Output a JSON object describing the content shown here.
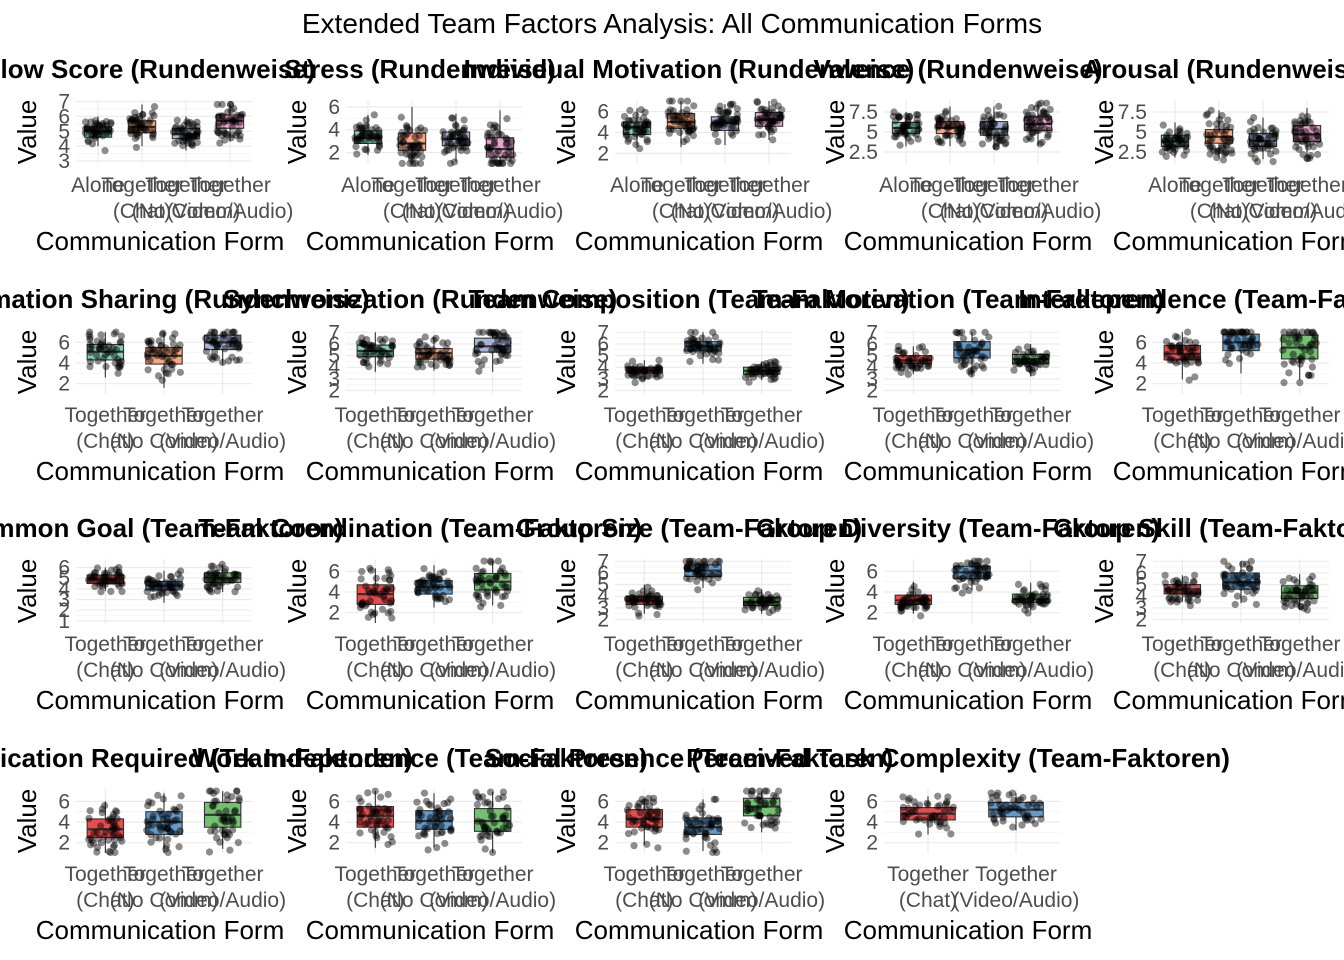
{
  "figure_title": "Extended Team Factors Analysis: All Communication Forms",
  "y_axis_label": "Value",
  "x_axis_label": "Communication Form",
  "colors": {
    "Alone": "#66C2A5",
    "Together (Chat)": "#FC8D62",
    "Together (No Comm)": "#8DA0CB",
    "Together (Video/Audio)": "#E78AC3",
    "set1_red": "#E41A1C",
    "set1_blue": "#377EB8",
    "set1_green": "#4DAF4A"
  },
  "chart_data": [
    {
      "type": "box",
      "title": "Flow Score (Rundenweise)",
      "categories": [
        "Alone",
        "Together\n(Chat)",
        "Together\n(No Comm)",
        "Together\n(Video/Audio)"
      ],
      "palette": [
        "#66C2A5",
        "#FC8D62",
        "#8DA0CB",
        "#E78AC3"
      ],
      "ylim": [
        2.8,
        7.1
      ],
      "yticks": [
        3,
        4,
        5,
        6,
        7
      ],
      "boxes": [
        {
          "q1": 4.6,
          "median": 5.0,
          "q3": 5.3,
          "whisker_low": 4.0,
          "whisker_high": 6.0
        },
        {
          "q1": 4.9,
          "median": 5.3,
          "q3": 5.7,
          "whisker_low": 4.0,
          "whisker_high": 6.8
        },
        {
          "q1": 4.5,
          "median": 4.8,
          "q3": 5.2,
          "whisker_low": 3.7,
          "whisker_high": 6.0
        },
        {
          "q1": 5.2,
          "median": 5.7,
          "q3": 6.1,
          "whisker_low": 4.3,
          "whisker_high": 6.8
        }
      ]
    },
    {
      "type": "box",
      "title": "Stress (Rundenweise)",
      "categories": [
        "Alone",
        "Together\n(Chat)",
        "Together\n(No Comm)",
        "Together\n(Video/Audio)"
      ],
      "palette": [
        "#66C2A5",
        "#FC8D62",
        "#8DA0CB",
        "#E78AC3"
      ],
      "ylim": [
        1.0,
        6.6
      ],
      "yticks": [
        2,
        4,
        6
      ],
      "boxes": [
        {
          "q1": 2.8,
          "median": 3.3,
          "q3": 3.9,
          "whisker_low": 1.8,
          "whisker_high": 5.3
        },
        {
          "q1": 2.2,
          "median": 2.8,
          "q3": 3.7,
          "whisker_low": 1.0,
          "whisker_high": 6.0
        },
        {
          "q1": 2.6,
          "median": 3.2,
          "q3": 3.8,
          "whisker_low": 1.2,
          "whisker_high": 5.4
        },
        {
          "q1": 1.6,
          "median": 2.3,
          "q3": 3.3,
          "whisker_low": 1.0,
          "whisker_high": 5.7
        }
      ]
    },
    {
      "type": "box",
      "title": "Individual Motivation (Rundenweise)",
      "categories": [
        "Alone",
        "Together\n(Chat)",
        "Together\n(No Comm)",
        "Together\n(Video/Audio)"
      ],
      "palette": [
        "#66C2A5",
        "#FC8D62",
        "#8DA0CB",
        "#E78AC3"
      ],
      "ylim": [
        1.0,
        7.1
      ],
      "yticks": [
        2,
        4,
        6
      ],
      "boxes": [
        {
          "q1": 3.8,
          "median": 4.5,
          "q3": 5.0,
          "whisker_low": 2.7,
          "whisker_high": 6.3
        },
        {
          "q1": 4.4,
          "median": 5.0,
          "q3": 5.8,
          "whisker_low": 2.6,
          "whisker_high": 7.0
        },
        {
          "q1": 4.2,
          "median": 4.9,
          "q3": 5.5,
          "whisker_low": 2.8,
          "whisker_high": 6.7
        },
        {
          "q1": 4.6,
          "median": 5.2,
          "q3": 5.9,
          "whisker_low": 3.3,
          "whisker_high": 7.0
        }
      ]
    },
    {
      "type": "box",
      "title": "Valence (Rundenweise)",
      "categories": [
        "Alone",
        "Together\n(Chat)",
        "Together\n(No Comm)",
        "Together\n(Video/Audio)"
      ],
      "palette": [
        "#66C2A5",
        "#FC8D62",
        "#8DA0CB",
        "#E78AC3"
      ],
      "ylim": [
        1.0,
        9.0
      ],
      "yticks": [
        2.5,
        5.0,
        7.5
      ],
      "boxes": [
        {
          "q1": 4.8,
          "median": 5.5,
          "q3": 6.2,
          "whisker_low": 3.2,
          "whisker_high": 7.5
        },
        {
          "q1": 4.8,
          "median": 5.5,
          "q3": 6.3,
          "whisker_low": 3.2,
          "whisker_high": 8.2
        },
        {
          "q1": 4.6,
          "median": 5.4,
          "q3": 6.3,
          "whisker_low": 2.8,
          "whisker_high": 8.2
        },
        {
          "q1": 5.2,
          "median": 6.0,
          "q3": 6.9,
          "whisker_low": 3.3,
          "whisker_high": 8.6
        }
      ]
    },
    {
      "type": "box",
      "title": "Arousal (Rundenweise)",
      "categories": [
        "Alone",
        "Together\n(Chat)",
        "Together\n(No Comm)",
        "Together\n(Video/Audio)"
      ],
      "palette": [
        "#66C2A5",
        "#FC8D62",
        "#8DA0CB",
        "#E78AC3"
      ],
      "ylim": [
        1.0,
        9.0
      ],
      "yticks": [
        2.5,
        5.0,
        7.5
      ],
      "boxes": [
        {
          "q1": 3.2,
          "median": 3.8,
          "q3": 4.6,
          "whisker_low": 1.8,
          "whisker_high": 6.2
        },
        {
          "q1": 3.6,
          "median": 4.4,
          "q3": 5.3,
          "whisker_low": 1.8,
          "whisker_high": 7.7
        },
        {
          "q1": 3.2,
          "median": 3.9,
          "q3": 4.8,
          "whisker_low": 1.6,
          "whisker_high": 6.8
        },
        {
          "q1": 3.8,
          "median": 4.7,
          "q3": 5.8,
          "whisker_low": 2.0,
          "whisker_high": 8.0
        }
      ]
    },
    {
      "type": "box",
      "title": "Information Sharing (Rundenweise)",
      "categories": [
        "Together\n(Chat)",
        "Together\n(No Comm)",
        "Together\n(Video/Audio)"
      ],
      "palette": [
        "#66C2A5",
        "#FC8D62",
        "#8DA0CB"
      ],
      "ylim": [
        1.0,
        7.2
      ],
      "yticks": [
        2,
        4,
        6
      ],
      "boxes": [
        {
          "q1": 4.3,
          "median": 5.1,
          "q3": 5.8,
          "whisker_low": 2.6,
          "whisker_high": 7.0
        },
        {
          "q1": 3.9,
          "median": 4.7,
          "q3": 5.5,
          "whisker_low": 1.6,
          "whisker_high": 7.0
        },
        {
          "q1": 5.3,
          "median": 6.0,
          "q3": 6.7,
          "whisker_low": 3.8,
          "whisker_high": 7.0
        }
      ]
    },
    {
      "type": "box",
      "title": "Synchronization (Rundenweise)",
      "categories": [
        "Together\n(Chat)",
        "Together\n(No Comm)",
        "Together\n(Video/Audio)"
      ],
      "palette": [
        "#66C2A5",
        "#FC8D62",
        "#8DA0CB"
      ],
      "ylim": [
        1.7,
        7.2
      ],
      "yticks": [
        2,
        3,
        4,
        5,
        6,
        7
      ],
      "boxes": [
        {
          "q1": 4.9,
          "median": 5.4,
          "q3": 5.9,
          "whisker_low": 3.6,
          "whisker_high": 7.0
        },
        {
          "q1": 4.7,
          "median": 5.2,
          "q3": 5.6,
          "whisker_low": 3.7,
          "whisker_high": 6.6
        },
        {
          "q1": 5.3,
          "median": 5.8,
          "q3": 6.5,
          "whisker_low": 3.6,
          "whisker_high": 7.0
        }
      ]
    },
    {
      "type": "box",
      "title": "Team Composition (Team-Faktoren)",
      "categories": [
        "Together\n(Chat)",
        "Together\n(No Comm)",
        "Together\n(Video/Audio)"
      ],
      "palette": [
        "#E41A1C",
        "#377EB8",
        "#4DAF4A"
      ],
      "ylim": [
        1.7,
        7.2
      ],
      "yticks": [
        2,
        3,
        4,
        5,
        6,
        7
      ],
      "boxes": [
        {
          "q1": 3.5,
          "median": 3.7,
          "q3": 4.0,
          "whisker_low": 2.9,
          "whisker_high": 4.6
        },
        {
          "q1": 5.4,
          "median": 5.8,
          "q3": 6.2,
          "whisker_low": 4.3,
          "whisker_high": 7.0
        },
        {
          "q1": 3.4,
          "median": 3.7,
          "q3": 4.0,
          "whisker_low": 2.9,
          "whisker_high": 4.5
        }
      ]
    },
    {
      "type": "box",
      "title": "Team Motivation (Team-Faktoren)",
      "categories": [
        "Together\n(Chat)",
        "Together\n(No Comm)",
        "Together\n(Video/Audio)"
      ],
      "palette": [
        "#E41A1C",
        "#377EB8",
        "#4DAF4A"
      ],
      "ylim": [
        1.7,
        7.2
      ],
      "yticks": [
        2,
        3,
        4,
        5,
        6,
        7
      ],
      "boxes": [
        {
          "q1": 4.3,
          "median": 4.6,
          "q3": 5.0,
          "whisker_low": 3.4,
          "whisker_high": 5.8
        },
        {
          "q1": 4.8,
          "median": 5.5,
          "q3": 6.2,
          "whisker_low": 3.2,
          "whisker_high": 7.0
        },
        {
          "q1": 4.3,
          "median": 4.7,
          "q3": 5.1,
          "whisker_low": 3.2,
          "whisker_high": 6.0
        }
      ]
    },
    {
      "type": "box",
      "title": "Interdependence (Team-Faktoren)",
      "categories": [
        "Together\n(Chat)",
        "Together\n(No Comm)",
        "Together\n(Video/Audio)"
      ],
      "palette": [
        "#E41A1C",
        "#377EB8",
        "#4DAF4A"
      ],
      "ylim": [
        1.0,
        7.2
      ],
      "yticks": [
        2,
        4,
        6
      ],
      "boxes": [
        {
          "q1": 4.3,
          "median": 4.9,
          "q3": 5.7,
          "whisker_low": 2.4,
          "whisker_high": 7.0
        },
        {
          "q1": 5.2,
          "median": 6.0,
          "q3": 6.8,
          "whisker_low": 3.0,
          "whisker_high": 7.0
        },
        {
          "q1": 4.4,
          "median": 5.5,
          "q3": 6.7,
          "whisker_low": 2.4,
          "whisker_high": 7.0
        }
      ]
    },
    {
      "type": "box",
      "title": "Common Goal (Team-Faktoren)",
      "categories": [
        "Together\n(Chat)",
        "Together\n(No Comm)",
        "Together\n(Video/Audio)"
      ],
      "palette": [
        "#E41A1C",
        "#377EB8",
        "#4DAF4A"
      ],
      "ylim": [
        0.8,
        6.8
      ],
      "yticks": [
        1,
        2,
        3,
        4,
        5,
        6
      ],
      "boxes": [
        {
          "q1": 4.5,
          "median": 4.9,
          "q3": 5.3,
          "whisker_low": 3.8,
          "whisker_high": 6.0
        },
        {
          "q1": 3.9,
          "median": 4.3,
          "q3": 4.7,
          "whisker_low": 2.7,
          "whisker_high": 5.7
        },
        {
          "q1": 4.6,
          "median": 5.0,
          "q3": 5.5,
          "whisker_low": 3.7,
          "whisker_high": 6.3
        }
      ]
    },
    {
      "type": "box",
      "title": "Team Coordination (Team-Faktoren)",
      "categories": [
        "Together\n(Chat)",
        "Together\n(No Comm)",
        "Together\n(Video/Audio)"
      ],
      "palette": [
        "#E41A1C",
        "#377EB8",
        "#4DAF4A"
      ],
      "ylim": [
        1.0,
        7.2
      ],
      "yticks": [
        2,
        4,
        6
      ],
      "boxes": [
        {
          "q1": 2.8,
          "median": 3.8,
          "q3": 4.7,
          "whisker_low": 1.0,
          "whisker_high": 6.3
        },
        {
          "q1": 3.8,
          "median": 4.5,
          "q3": 5.1,
          "whisker_low": 2.5,
          "whisker_high": 6.6
        },
        {
          "q1": 4.2,
          "median": 5.0,
          "q3": 5.8,
          "whisker_low": 2.7,
          "whisker_high": 7.0
        }
      ]
    },
    {
      "type": "box",
      "title": "Group Size (Team-Faktoren)",
      "categories": [
        "Together\n(Chat)",
        "Together\n(No Comm)",
        "Together\n(Video/Audio)"
      ],
      "palette": [
        "#E41A1C",
        "#377EB8",
        "#4DAF4A"
      ],
      "ylim": [
        1.7,
        7.2
      ],
      "yticks": [
        2,
        3,
        4,
        5,
        6,
        7
      ],
      "boxes": [
        {
          "q1": 3.3,
          "median": 3.6,
          "q3": 4.0,
          "whisker_low": 2.5,
          "whisker_high": 5.0
        },
        {
          "q1": 5.7,
          "median": 6.2,
          "q3": 6.7,
          "whisker_low": 4.7,
          "whisker_high": 7.0
        },
        {
          "q1": 3.2,
          "median": 3.5,
          "q3": 3.9,
          "whisker_low": 2.5,
          "whisker_high": 4.6
        }
      ]
    },
    {
      "type": "box",
      "title": "Group Diversity (Team-Faktoren)",
      "categories": [
        "Together\n(Chat)",
        "Together\n(No Comm)",
        "Together\n(Video/Audio)"
      ],
      "palette": [
        "#E41A1C",
        "#377EB8",
        "#4DAF4A"
      ],
      "ylim": [
        1.0,
        7.2
      ],
      "yticks": [
        2,
        4,
        6
      ],
      "boxes": [
        {
          "q1": 2.8,
          "median": 3.2,
          "q3": 3.7,
          "whisker_low": 1.9,
          "whisker_high": 5.0
        },
        {
          "q1": 5.3,
          "median": 5.9,
          "q3": 6.5,
          "whisker_low": 4.2,
          "whisker_high": 7.0
        },
        {
          "q1": 3.0,
          "median": 3.3,
          "q3": 3.8,
          "whisker_low": 2.2,
          "whisker_high": 4.9
        }
      ]
    },
    {
      "type": "box",
      "title": "Group Skill (Team-Faktoren)",
      "categories": [
        "Together\n(Chat)",
        "Together\n(No Comm)",
        "Together\n(Video/Audio)"
      ],
      "palette": [
        "#E41A1C",
        "#377EB8",
        "#4DAF4A"
      ],
      "ylim": [
        1.7,
        7.2
      ],
      "yticks": [
        2,
        3,
        4,
        5,
        6,
        7
      ],
      "boxes": [
        {
          "q1": 4.2,
          "median": 4.6,
          "q3": 5.0,
          "whisker_low": 3.5,
          "whisker_high": 5.8
        },
        {
          "q1": 4.6,
          "median": 5.2,
          "q3": 6.0,
          "whisker_low": 3.4,
          "whisker_high": 7.0
        },
        {
          "q1": 3.8,
          "median": 4.3,
          "q3": 4.9,
          "whisker_low": 2.8,
          "whisker_high": 5.9
        }
      ]
    },
    {
      "type": "box",
      "title": "Communication Required (Team-Faktoren)",
      "categories": [
        "Together\n(Chat)",
        "Together\n(No Comm)",
        "Together\n(Video/Audio)"
      ],
      "palette": [
        "#E41A1C",
        "#377EB8",
        "#4DAF4A"
      ],
      "ylim": [
        1.0,
        7.2
      ],
      "yticks": [
        2,
        4,
        6
      ],
      "boxes": [
        {
          "q1": 2.5,
          "median": 3.3,
          "q3": 4.3,
          "whisker_low": 1.0,
          "whisker_high": 6.0
        },
        {
          "q1": 2.8,
          "median": 4.0,
          "q3": 5.0,
          "whisker_low": 1.0,
          "whisker_high": 6.8
        },
        {
          "q1": 3.5,
          "median": 4.7,
          "q3": 5.9,
          "whisker_low": 1.4,
          "whisker_high": 7.0
        }
      ]
    },
    {
      "type": "box",
      "title": "Work Independence (Team-Faktoren)",
      "categories": [
        "Together\n(Chat)",
        "Together\n(No Comm)",
        "Together\n(Video/Audio)"
      ],
      "palette": [
        "#E41A1C",
        "#377EB8",
        "#4DAF4A"
      ],
      "ylim": [
        1.0,
        7.2
      ],
      "yticks": [
        2,
        4,
        6
      ],
      "boxes": [
        {
          "q1": 3.5,
          "median": 4.6,
          "q3": 5.5,
          "whisker_low": 1.5,
          "whisker_high": 7.0
        },
        {
          "q1": 3.3,
          "median": 4.1,
          "q3": 5.1,
          "whisker_low": 1.6,
          "whisker_high": 6.8
        },
        {
          "q1": 3.1,
          "median": 4.1,
          "q3": 5.3,
          "whisker_low": 1.0,
          "whisker_high": 6.9
        }
      ]
    },
    {
      "type": "box",
      "title": "Social Presence (Team-Faktoren)",
      "categories": [
        "Together\n(Chat)",
        "Together\n(No Comm)",
        "Together\n(Video/Audio)"
      ],
      "palette": [
        "#E41A1C",
        "#377EB8",
        "#4DAF4A"
      ],
      "ylim": [
        1.0,
        7.2
      ],
      "yticks": [
        2,
        4,
        6
      ],
      "boxes": [
        {
          "q1": 3.5,
          "median": 4.3,
          "q3": 5.2,
          "whisker_low": 1.8,
          "whisker_high": 6.3
        },
        {
          "q1": 2.8,
          "median": 3.5,
          "q3": 4.4,
          "whisker_low": 1.2,
          "whisker_high": 6.2
        },
        {
          "q1": 4.6,
          "median": 5.5,
          "q3": 6.3,
          "whisker_low": 3.0,
          "whisker_high": 7.0
        }
      ]
    },
    {
      "type": "box",
      "title": "Perceived Task Complexity (Team-Faktoren)",
      "categories": [
        "Together\n(Chat)",
        "Together\n(Video/Audio)"
      ],
      "palette": [
        "#E41A1C",
        "#377EB8"
      ],
      "ylim": [
        1.0,
        7.2
      ],
      "yticks": [
        2,
        4,
        6
      ],
      "boxes": [
        {
          "q1": 4.2,
          "median": 4.8,
          "q3": 5.4,
          "whisker_low": 2.8,
          "whisker_high": 6.5
        },
        {
          "q1": 4.5,
          "median": 5.2,
          "q3": 5.9,
          "whisker_low": 3.2,
          "whisker_high": 6.8
        }
      ]
    }
  ]
}
